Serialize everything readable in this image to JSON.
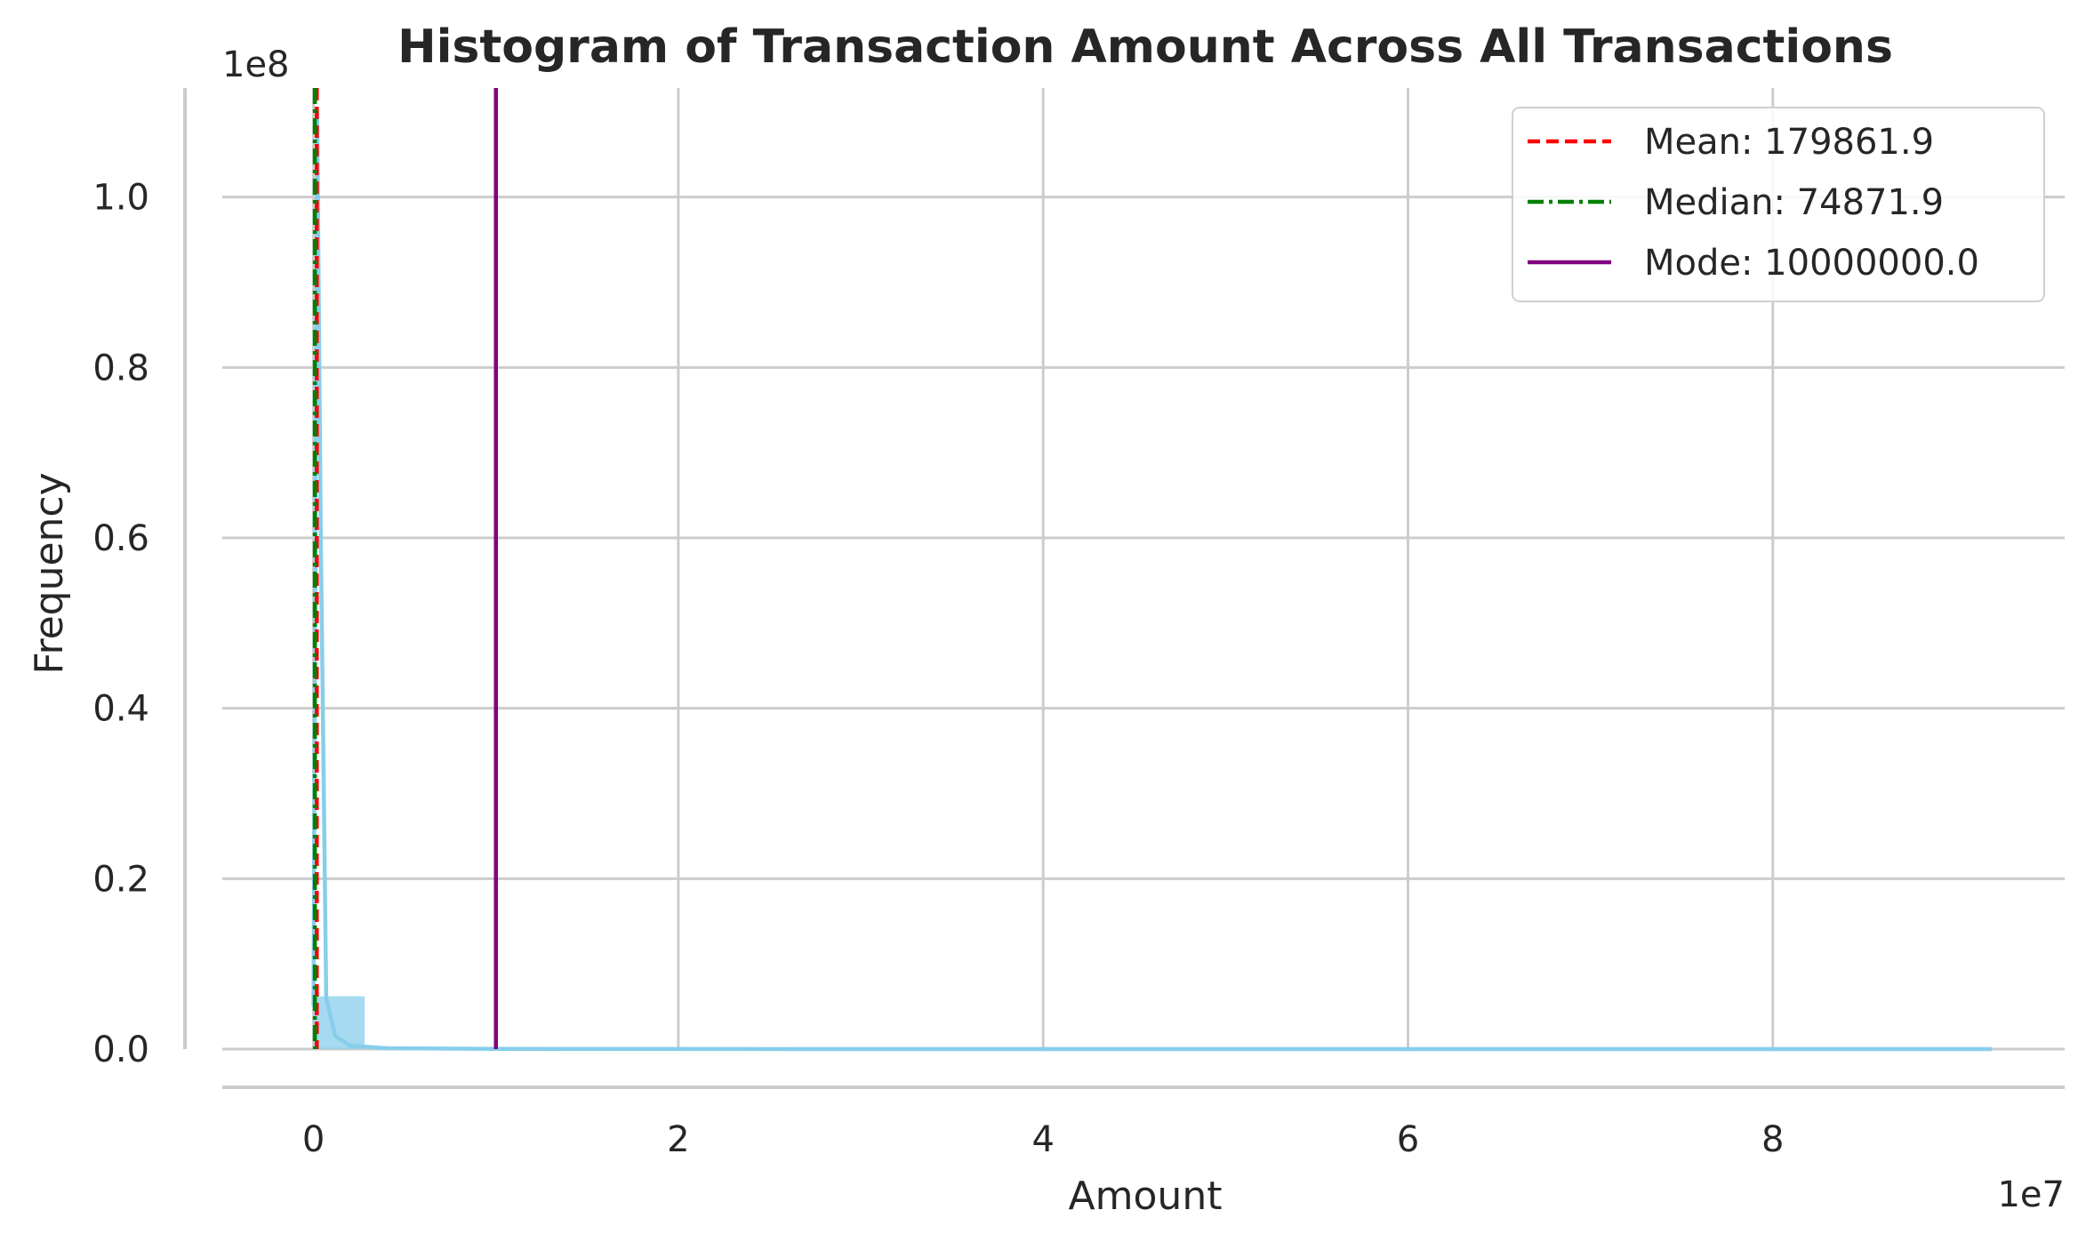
{
  "chart_data": {
    "type": "bar",
    "title": "Histogram of Transaction Amount Across All Transactions",
    "xlabel": "Amount",
    "ylabel": "Frequency",
    "x_offset_label": "1e7",
    "y_offset_label": "1e8",
    "xlim": [
      -5000000,
      96000000
    ],
    "ylim": [
      0,
      112800000
    ],
    "x_ticks": [
      0,
      20000000,
      40000000,
      60000000,
      80000000
    ],
    "x_tick_labels": [
      "0",
      "2",
      "4",
      "6",
      "8"
    ],
    "y_ticks": [
      0,
      20000000,
      40000000,
      60000000,
      80000000,
      100000000
    ],
    "y_tick_labels": [
      "0.0",
      "0.2",
      "0.4",
      "0.6",
      "0.8",
      "1.0"
    ],
    "grid": true,
    "bar_color": "#87ceeb",
    "bins": [
      {
        "x0": 0,
        "x1": 2800000,
        "count": 6200000
      },
      {
        "x0": 2800000,
        "x1": 92000000,
        "count": 0
      }
    ],
    "kde": {
      "color": "#87ceeb",
      "points": [
        [
          0,
          5000000
        ],
        [
          200000,
          110000000
        ],
        [
          400000,
          60000000
        ],
        [
          700000,
          6000000
        ],
        [
          1200000,
          1500000
        ],
        [
          2000000,
          400000
        ],
        [
          4000000,
          100000
        ],
        [
          10000000,
          20000
        ],
        [
          30000000,
          0
        ],
        [
          92000000,
          0
        ]
      ]
    },
    "reference_lines": [
      {
        "label": "Mean: 179861.9",
        "value": 179861.9,
        "color": "#ff0000",
        "dash": "dashed"
      },
      {
        "label": "Median: 74871.9",
        "value": 74871.9,
        "color": "#008000",
        "dash": "dashdot"
      },
      {
        "label": "Mode: 10000000.0",
        "value": 10000000.0,
        "color": "#800080",
        "dash": "solid"
      }
    ],
    "legend_position": "top-right"
  }
}
